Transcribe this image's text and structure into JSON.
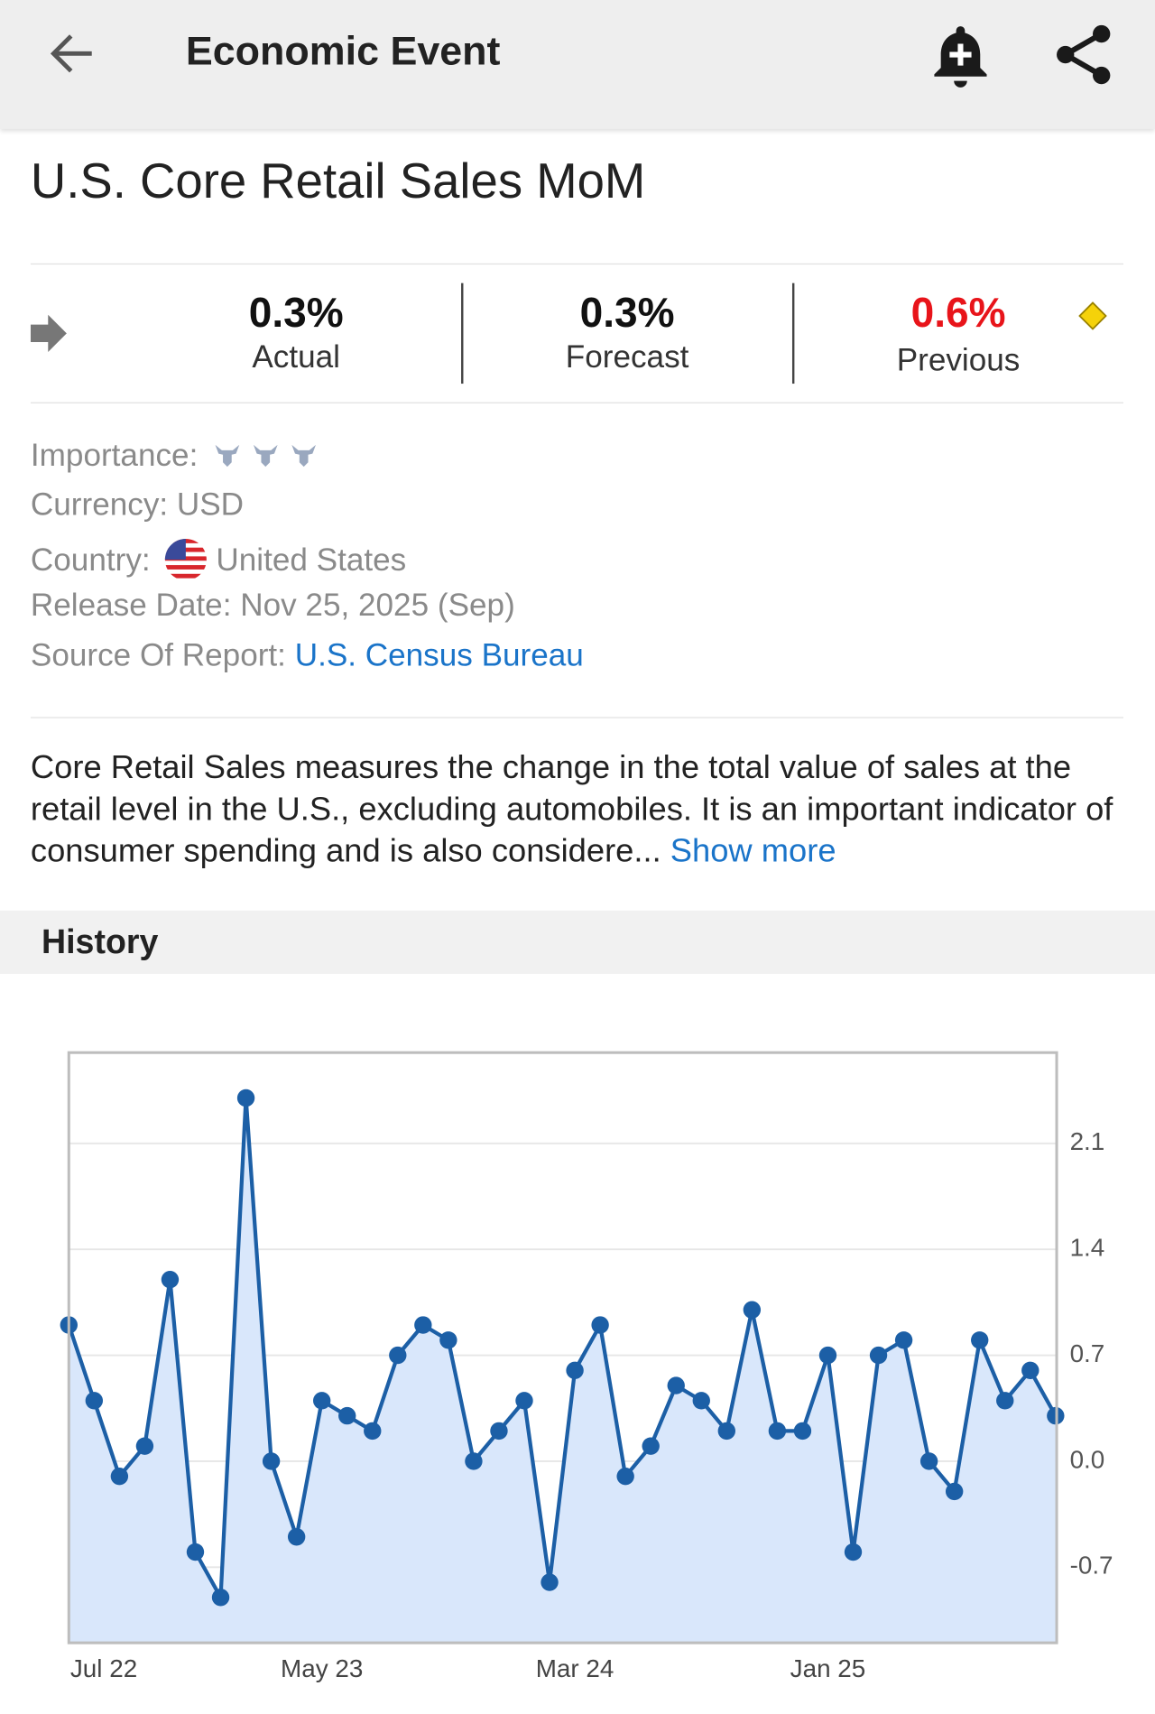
{
  "header": {
    "title": "Economic Event"
  },
  "event": {
    "title": "U.S. Core Retail Sales MoM"
  },
  "stats": [
    {
      "value": "0.3%",
      "label": "Actual"
    },
    {
      "value": "0.3%",
      "label": "Forecast"
    },
    {
      "value": "0.6%",
      "label": "Previous"
    }
  ],
  "details": {
    "importance_label": "Importance:",
    "currency": "Currency: USD",
    "country_label": "Country:",
    "country": "United States",
    "release_date": "Release Date: Nov 25, 2025 (Sep)",
    "source_label": "Source Of Report:",
    "source": "U.S. Census Bureau"
  },
  "description": {
    "text": "Core Retail Sales measures the change in the total value of sales at the retail level in the U.S., excluding automobiles. It is an important indicator of consumer spending and is also considere...",
    "link": "Show more"
  },
  "history": {
    "title": "History"
  },
  "chart_data": {
    "type": "line",
    "categories": [
      "Jul 22",
      null,
      null,
      null,
      null,
      null,
      null,
      null,
      null,
      null,
      "May 23",
      null,
      null,
      null,
      null,
      null,
      null,
      null,
      null,
      null,
      "Mar 24",
      null,
      null,
      null,
      null,
      null,
      null,
      null,
      null,
      null,
      "Jan 25",
      null,
      null,
      null,
      null,
      null,
      null,
      null,
      null,
      null
    ],
    "series": [
      {
        "color": "#1c5fa6",
        "fill": "#d9e7fb",
        "values": [
          0.9,
          0.4,
          -0.1,
          0.1,
          1.2,
          -0.6,
          -0.9,
          2.4,
          0.0,
          -0.5,
          0.4,
          0.3,
          0.2,
          0.7,
          0.9,
          0.8,
          0.0,
          0.2,
          0.4,
          -0.8,
          0.6,
          0.9,
          -0.1,
          0.1,
          0.5,
          0.4,
          0.2,
          1.0,
          0.2,
          0.2,
          0.7,
          -0.6,
          0.7,
          0.8,
          0.0,
          -0.2,
          0.8,
          0.4,
          0.6,
          0.3
        ]
      }
    ],
    "ylim": [
      -1.2,
      2.7
    ],
    "yticks": [
      -0.7,
      {
        "value": 0,
        "label": "0.0"
      },
      0.7,
      1.4,
      2.1
    ],
    "grid": true
  }
}
